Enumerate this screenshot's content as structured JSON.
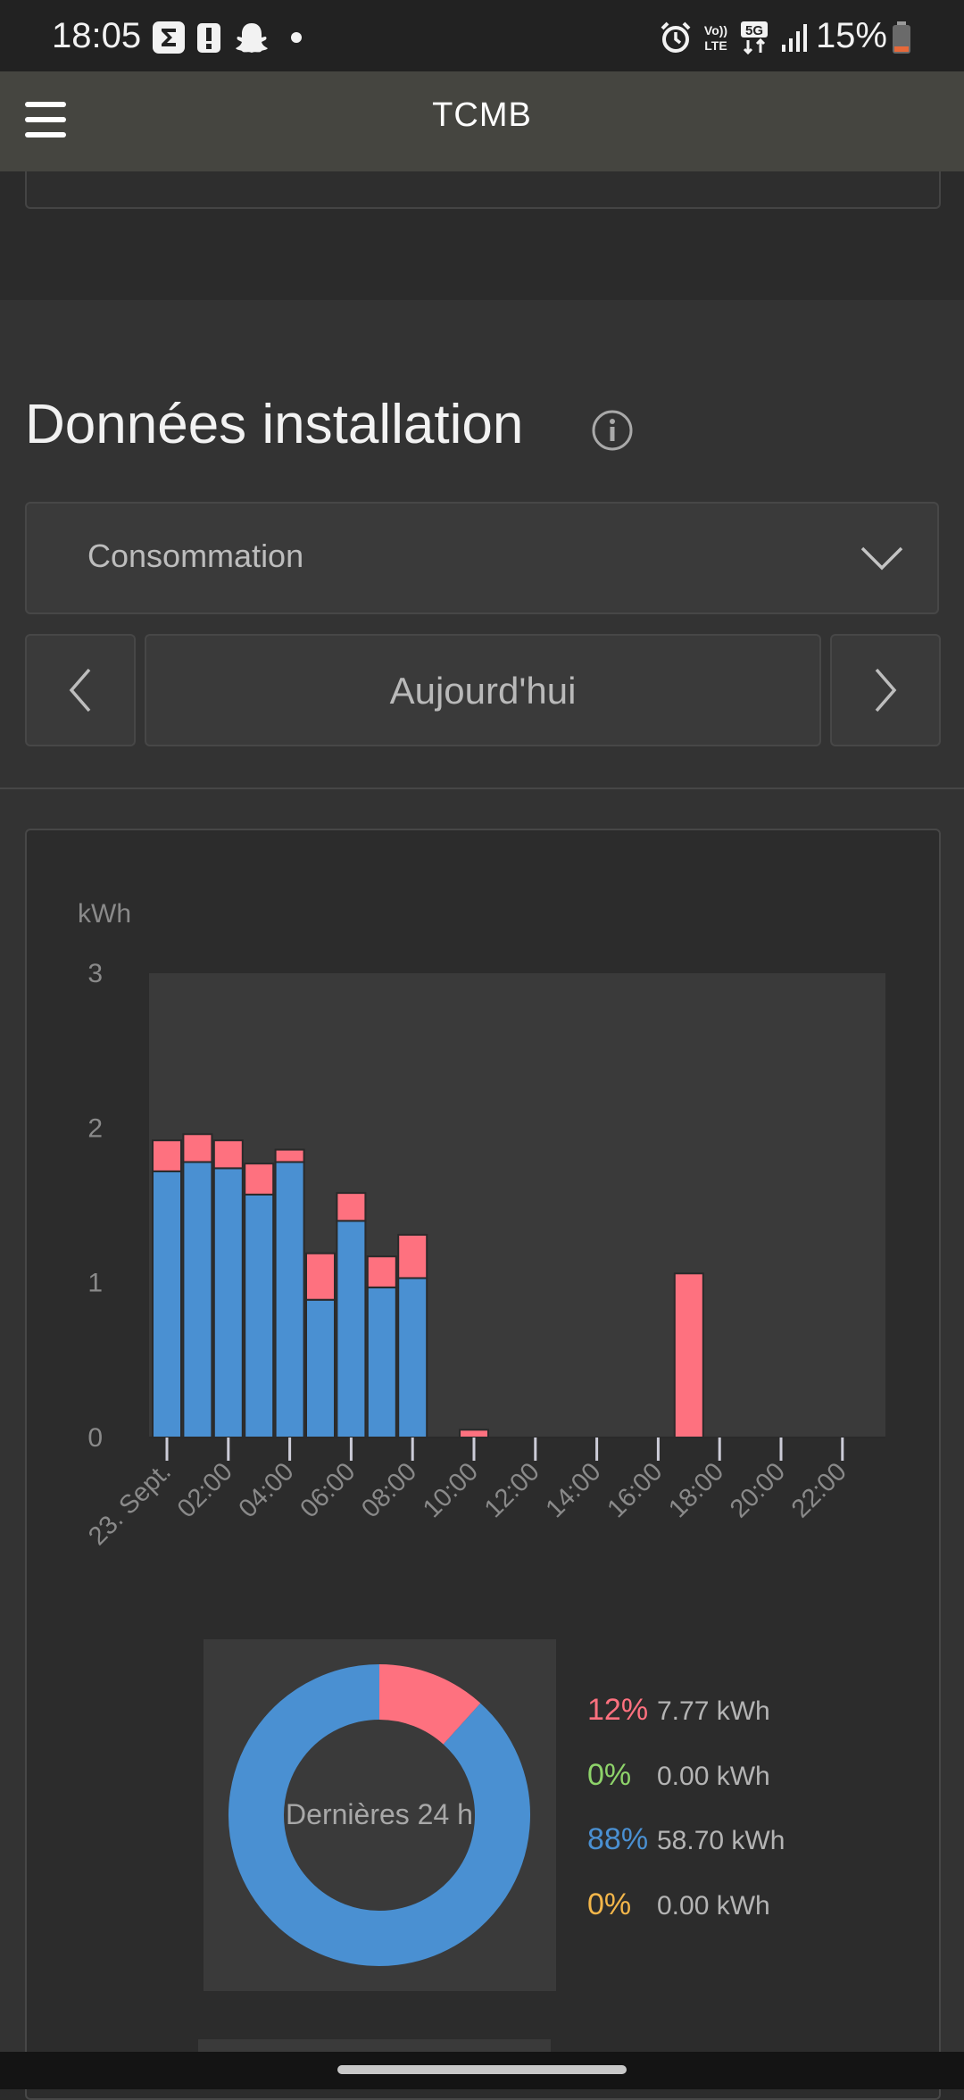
{
  "status_bar": {
    "time": "18:05",
    "battery_text": "15%",
    "icons": [
      "sigma-icon",
      "alert-icon",
      "snapchat-icon",
      "dot-icon",
      "alarm-icon",
      "volte-icon",
      "5g-icon",
      "signal-icon",
      "battery-icon"
    ],
    "volte_label": "Vo)) LTE",
    "network_label": "5G"
  },
  "app_bar": {
    "title": "TCMB",
    "menu_icon": "hamburger-menu-icon"
  },
  "section": {
    "title": "Données installation",
    "info_icon": "info-icon",
    "select_value": "Consommation",
    "period_label": "Aujourd'hui"
  },
  "chart_data": [
    {
      "type": "bar",
      "stacked": true,
      "ylabel": "kWh",
      "ylim": [
        0,
        3
      ],
      "yticks": [
        "0",
        "1",
        "2",
        "3"
      ],
      "xticklabels": [
        "23. Sept.",
        "02:00",
        "04:00",
        "06:00",
        "08:00",
        "10:00",
        "12:00",
        "14:00",
        "16:00",
        "18:00",
        "20:00",
        "22:00"
      ],
      "categories": [
        "00:00",
        "01:00",
        "02:00",
        "03:00",
        "04:00",
        "05:00",
        "06:00",
        "07:00",
        "08:00",
        "09:00",
        "10:00",
        "11:00",
        "12:00",
        "13:00",
        "14:00",
        "15:00",
        "16:00",
        "17:00",
        "18:00",
        "19:00",
        "20:00",
        "21:00",
        "22:00",
        "23:00"
      ],
      "series": [
        {
          "color": "#4a90d2",
          "values": [
            1.72,
            1.78,
            1.74,
            1.57,
            1.78,
            0.89,
            1.4,
            0.97,
            1.03,
            0,
            0,
            0,
            0,
            0,
            0,
            0,
            0,
            0,
            0,
            0,
            0,
            0,
            0,
            0
          ]
        },
        {
          "color": "#fe717f",
          "values": [
            0.2,
            0.18,
            0.18,
            0.2,
            0.08,
            0.3,
            0.18,
            0.2,
            0.28,
            0,
            0.05,
            0,
            0,
            0,
            0,
            0,
            0,
            1.06,
            0,
            0,
            0,
            0,
            0,
            0
          ]
        }
      ],
      "grid": false
    },
    {
      "type": "pie",
      "donut": true,
      "center_label": "Dernières 24 h",
      "slices": [
        {
          "pct_label": "12%",
          "value_label": "7.77 kWh",
          "value": 7.77,
          "color": "#fe717f"
        },
        {
          "pct_label": "0%",
          "value_label": "0.00 kWh",
          "value": 0.0,
          "color": "#8ed36a"
        },
        {
          "pct_label": "88%",
          "value_label": "58.70 kWh",
          "value": 58.7,
          "color": "#4a90d2"
        },
        {
          "pct_label": "0%",
          "value_label": "0.00 kWh",
          "value": 0.0,
          "color": "#f3b64a"
        }
      ]
    }
  ]
}
